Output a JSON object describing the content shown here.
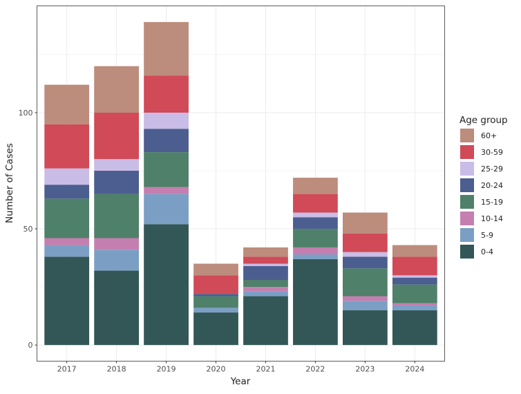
{
  "chart_data": {
    "type": "bar",
    "stacked": true,
    "title": "",
    "xlabel": "Year",
    "ylabel": "Number of Cases",
    "ylim": [
      -6.95,
      145.95
    ],
    "yticks": [
      0,
      50,
      100
    ],
    "grid": true,
    "legend_position": "right",
    "legend_title": "Age group",
    "categories": [
      "2017",
      "2018",
      "2019",
      "2020",
      "2021",
      "2022",
      "2023",
      "2024"
    ],
    "series": [
      {
        "name": "0-4",
        "color": "#325756",
        "values": [
          38,
          32,
          52,
          14,
          21,
          37,
          15,
          15
        ]
      },
      {
        "name": "5-9",
        "color": "#7b9fc4",
        "values": [
          5,
          9,
          13,
          2,
          2,
          2,
          4,
          2
        ]
      },
      {
        "name": "10-14",
        "color": "#c47fb0",
        "values": [
          3,
          5,
          3,
          0,
          2,
          3,
          2,
          1
        ]
      },
      {
        "name": "15-19",
        "color": "#4f806a",
        "values": [
          17,
          19,
          15,
          5,
          3,
          8,
          12,
          8
        ]
      },
      {
        "name": "20-24",
        "color": "#4c5e8f",
        "values": [
          6,
          10,
          10,
          1,
          6,
          5,
          5,
          3
        ]
      },
      {
        "name": "25-29",
        "color": "#c9bce6",
        "values": [
          7,
          5,
          7,
          0,
          1,
          2,
          2,
          1
        ]
      },
      {
        "name": "30-59",
        "color": "#d04a58",
        "values": [
          19,
          20,
          16,
          8,
          3,
          8,
          8,
          8
        ]
      },
      {
        "name": "60+",
        "color": "#bc8c7c",
        "values": [
          17,
          20,
          23,
          5,
          4,
          7,
          9,
          5
        ]
      }
    ]
  }
}
